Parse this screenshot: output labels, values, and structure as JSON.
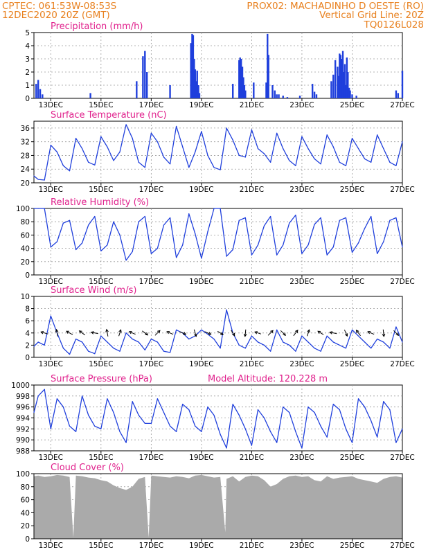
{
  "header": {
    "line1_left": "CPTEC:  061:53W-08:53S",
    "line1_right": "PROX02: MACHADINHO D OESTE (RO)",
    "line2_left": "12DEC2020 20Z (GMT)",
    "line2_right": "Vertical Grid Line: 20Z",
    "line3_right": "TQ0126L028"
  },
  "colors": {
    "header": "#e8801e",
    "panel_title": "#e0208c",
    "line": "#1f3fdc",
    "cloud": "#aaaaaa",
    "grid": "#9a9a9a",
    "axis": "#000000",
    "arrow": "#000000"
  },
  "x_axis": {
    "ticks": [
      {
        "day": 13,
        "label": "13DEC"
      },
      {
        "day": 15,
        "label": "15DEC"
      },
      {
        "day": 17,
        "label": "17DEC"
      },
      {
        "day": 19,
        "label": "19DEC"
      },
      {
        "day": 21,
        "label": "21DEC"
      },
      {
        "day": 23,
        "label": "23DEC"
      },
      {
        "day": 25,
        "label": "25DEC"
      },
      {
        "day": 27,
        "label": "27DEC"
      }
    ],
    "range_days": [
      12.33,
      27.0
    ],
    "vertical_grid_hour": "20Z"
  },
  "chart_data": [
    {
      "id": "precip",
      "type": "bar",
      "title": "Precipitation (mm/h)",
      "ylim": [
        0,
        5
      ],
      "yticks": [
        0,
        1,
        2,
        3,
        4,
        5
      ],
      "grid": true,
      "x": [
        12.42,
        12.5,
        12.58,
        12.67,
        14.58,
        16.42,
        16.67,
        16.75,
        16.83,
        17.75,
        18.58,
        18.63,
        18.67,
        18.71,
        18.75,
        18.79,
        18.83,
        18.88,
        18.92,
        20.25,
        20.5,
        20.54,
        20.58,
        20.63,
        20.67,
        20.71,
        20.75,
        21.08,
        21.58,
        21.63,
        21.67,
        21.83,
        21.92,
        22.0,
        22.08,
        22.25,
        22.42,
        22.92,
        23.42,
        23.5,
        23.58,
        24.17,
        24.25,
        24.33,
        24.42,
        24.46,
        24.5,
        24.54,
        24.58,
        24.63,
        24.67,
        24.71,
        24.75,
        24.79,
        24.83,
        24.88,
        24.92,
        25.0,
        25.17,
        26.75,
        26.83,
        27.0
      ],
      "values": [
        1.1,
        1.4,
        0.7,
        0.3,
        0.4,
        1.3,
        3.2,
        3.6,
        2.0,
        1.0,
        4.2,
        4.9,
        4.8,
        3.0,
        2.2,
        1.3,
        2.1,
        1.0,
        0.4,
        1.1,
        2.9,
        3.1,
        3.0,
        2.4,
        1.6,
        1.0,
        0.6,
        1.2,
        1.2,
        4.9,
        3.3,
        1.0,
        0.6,
        0.3,
        0.3,
        0.2,
        0.1,
        0.2,
        1.1,
        0.5,
        0.3,
        1.3,
        1.8,
        2.9,
        2.4,
        1.7,
        3.4,
        3.3,
        3.0,
        3.6,
        2.0,
        2.6,
        1.0,
        3.1,
        2.0,
        0.8,
        0.6,
        0.3,
        0.2,
        0.6,
        0.4,
        2.1
      ]
    },
    {
      "id": "temp",
      "type": "line",
      "title": "Surface Temperature (nC)",
      "ylim": [
        20,
        38
      ],
      "yticks": [
        20,
        24,
        28,
        32,
        36
      ],
      "grid": true,
      "x": [
        12.33,
        12.5,
        12.75,
        13.0,
        13.25,
        13.5,
        13.75,
        14.0,
        14.25,
        14.5,
        14.75,
        15.0,
        15.25,
        15.5,
        15.75,
        16.0,
        16.25,
        16.5,
        16.75,
        17.0,
        17.25,
        17.5,
        17.75,
        18.0,
        18.25,
        18.5,
        18.75,
        19.0,
        19.25,
        19.5,
        19.75,
        20.0,
        20.25,
        20.5,
        20.75,
        21.0,
        21.25,
        21.5,
        21.75,
        22.0,
        22.25,
        22.5,
        22.75,
        23.0,
        23.25,
        23.5,
        23.75,
        24.0,
        24.25,
        24.5,
        24.75,
        25.0,
        25.25,
        25.5,
        25.75,
        26.0,
        26.25,
        26.5,
        26.75,
        27.0
      ],
      "values": [
        22.0,
        21.0,
        20.8,
        31.0,
        29.0,
        25.0,
        23.5,
        33.0,
        30.0,
        26.0,
        25.2,
        33.5,
        30.5,
        26.5,
        29.0,
        37.0,
        33.0,
        26.0,
        24.5,
        34.5,
        32.0,
        27.5,
        25.5,
        36.5,
        30.5,
        24.5,
        29.0,
        35.0,
        28.0,
        24.5,
        23.8,
        36.0,
        32.5,
        28.0,
        27.5,
        35.5,
        30.0,
        28.5,
        26.0,
        34.5,
        30.0,
        26.5,
        25.0,
        33.5,
        30.0,
        27.0,
        25.5,
        34.0,
        30.5,
        26.0,
        25.0,
        33.0,
        30.0,
        27.0,
        26.0,
        34.0,
        30.0,
        26.0,
        25.0,
        32.0
      ]
    },
    {
      "id": "rh",
      "type": "line",
      "title": "Relative Humidity (%)",
      "ylim": [
        0,
        100
      ],
      "yticks": [
        0,
        20,
        40,
        60,
        80,
        100
      ],
      "grid": true,
      "x": [
        12.33,
        12.5,
        12.75,
        13.0,
        13.25,
        13.5,
        13.75,
        14.0,
        14.25,
        14.5,
        14.75,
        15.0,
        15.25,
        15.5,
        15.75,
        16.0,
        16.25,
        16.5,
        16.75,
        17.0,
        17.25,
        17.5,
        17.75,
        18.0,
        18.25,
        18.5,
        18.75,
        19.0,
        19.25,
        19.5,
        19.75,
        20.0,
        20.25,
        20.5,
        20.75,
        21.0,
        21.25,
        21.5,
        21.75,
        22.0,
        22.25,
        22.5,
        22.75,
        23.0,
        23.25,
        23.5,
        23.75,
        24.0,
        24.25,
        24.5,
        24.75,
        25.0,
        25.25,
        25.5,
        25.75,
        26.0,
        26.25,
        26.5,
        26.75,
        27.0
      ],
      "values": [
        100,
        100,
        100,
        42,
        50,
        78,
        82,
        38,
        48,
        75,
        88,
        36,
        45,
        80,
        60,
        22,
        35,
        80,
        88,
        32,
        40,
        75,
        86,
        26,
        45,
        92,
        62,
        25,
        65,
        100,
        100,
        28,
        38,
        82,
        86,
        30,
        45,
        74,
        88,
        30,
        45,
        78,
        90,
        32,
        45,
        76,
        86,
        30,
        42,
        82,
        86,
        34,
        48,
        70,
        88,
        32,
        50,
        82,
        86,
        42
      ]
    },
    {
      "id": "wind",
      "type": "line",
      "title": "Surface Wind (m/s)",
      "ylim": [
        0,
        10
      ],
      "yticks": [
        0,
        2,
        4,
        6,
        8,
        10
      ],
      "grid": true,
      "x": [
        12.33,
        12.5,
        12.75,
        13.0,
        13.25,
        13.5,
        13.75,
        14.0,
        14.25,
        14.5,
        14.75,
        15.0,
        15.25,
        15.5,
        15.75,
        16.0,
        16.25,
        16.5,
        16.75,
        17.0,
        17.25,
        17.5,
        17.75,
        18.0,
        18.25,
        18.5,
        18.75,
        19.0,
        19.25,
        19.5,
        19.75,
        20.0,
        20.25,
        20.5,
        20.75,
        21.0,
        21.25,
        21.5,
        21.75,
        22.0,
        22.25,
        22.5,
        22.75,
        23.0,
        23.25,
        23.5,
        23.75,
        24.0,
        24.25,
        24.5,
        24.75,
        25.0,
        25.25,
        25.5,
        25.75,
        26.0,
        26.25,
        26.5,
        26.75,
        27.0
      ],
      "values": [
        1.8,
        2.5,
        2.0,
        6.8,
        4.0,
        1.5,
        0.5,
        3.0,
        2.5,
        1.0,
        0.6,
        3.5,
        2.5,
        1.5,
        1.0,
        4.0,
        3.0,
        2.5,
        1.2,
        3.0,
        2.5,
        1.0,
        0.8,
        4.5,
        4.0,
        3.0,
        3.5,
        4.5,
        3.8,
        3.0,
        1.5,
        7.8,
        4.0,
        2.0,
        1.5,
        3.5,
        2.5,
        2.0,
        1.0,
        4.5,
        2.5,
        2.0,
        1.0,
        3.5,
        2.5,
        1.5,
        1.0,
        3.5,
        2.5,
        2.0,
        1.5,
        4.5,
        3.5,
        2.5,
        1.5,
        3.0,
        2.5,
        1.5,
        5.0,
        2.5
      ],
      "vectors": [
        {
          "day": 12.75,
          "u": -1.0,
          "v": 0.3
        },
        {
          "day": 13.25,
          "u": -0.2,
          "v": 1.0
        },
        {
          "day": 13.75,
          "u": -0.9,
          "v": 0.5
        },
        {
          "day": 14.25,
          "u": -0.8,
          "v": 0.6
        },
        {
          "day": 14.75,
          "u": -1.0,
          "v": 0.2
        },
        {
          "day": 15.25,
          "u": -0.2,
          "v": 1.0
        },
        {
          "day": 15.75,
          "u": 0.3,
          "v": 0.9
        },
        {
          "day": 16.25,
          "u": -0.9,
          "v": 0.4
        },
        {
          "day": 16.75,
          "u": 0.8,
          "v": -0.6
        },
        {
          "day": 17.25,
          "u": 0.7,
          "v": 0.7
        },
        {
          "day": 17.75,
          "u": -0.9,
          "v": 0.4
        },
        {
          "day": 18.25,
          "u": 0.9,
          "v": -0.4
        },
        {
          "day": 18.75,
          "u": 0.3,
          "v": -1.0
        },
        {
          "day": 19.25,
          "u": 0.9,
          "v": -0.4
        },
        {
          "day": 19.75,
          "u": 0.8,
          "v": -0.5
        },
        {
          "day": 20.25,
          "u": 0.5,
          "v": -0.8
        },
        {
          "day": 20.75,
          "u": -0.1,
          "v": -1.0
        },
        {
          "day": 21.25,
          "u": -0.9,
          "v": 0.3
        },
        {
          "day": 21.75,
          "u": 0.7,
          "v": 0.7
        },
        {
          "day": 22.25,
          "u": 0.7,
          "v": -0.7
        },
        {
          "day": 22.75,
          "u": 0.6,
          "v": 0.8
        },
        {
          "day": 23.25,
          "u": 0.3,
          "v": 0.9
        },
        {
          "day": 23.75,
          "u": -0.8,
          "v": 0.5
        },
        {
          "day": 24.25,
          "u": -1.0,
          "v": 0.2
        },
        {
          "day": 24.75,
          "u": 0.4,
          "v": -0.9
        },
        {
          "day": 25.25,
          "u": -0.6,
          "v": 0.8
        },
        {
          "day": 25.75,
          "u": -0.9,
          "v": 0.4
        },
        {
          "day": 26.25,
          "u": 0.1,
          "v": -1.0
        },
        {
          "day": 26.75,
          "u": 0.7,
          "v": -0.7
        }
      ]
    },
    {
      "id": "pressure",
      "type": "line",
      "title": "Surface Pressure (hPa)",
      "subtitle": "Model Altitude: 120.228 m",
      "ylim": [
        988,
        1000
      ],
      "yticks": [
        988,
        990,
        992,
        994,
        996,
        998,
        1000
      ],
      "grid": true,
      "x": [
        12.33,
        12.5,
        12.75,
        13.0,
        13.25,
        13.5,
        13.75,
        14.0,
        14.25,
        14.5,
        14.75,
        15.0,
        15.25,
        15.5,
        15.75,
        16.0,
        16.25,
        16.5,
        16.75,
        17.0,
        17.25,
        17.5,
        17.75,
        18.0,
        18.25,
        18.5,
        18.75,
        19.0,
        19.25,
        19.5,
        19.75,
        20.0,
        20.25,
        20.5,
        20.75,
        21.0,
        21.25,
        21.5,
        21.75,
        22.0,
        22.25,
        22.5,
        22.75,
        23.0,
        23.25,
        23.5,
        23.75,
        24.0,
        24.25,
        24.5,
        24.75,
        25.0,
        25.25,
        25.5,
        25.75,
        26.0,
        26.25,
        26.5,
        26.75,
        27.0
      ],
      "values": [
        995.0,
        998.0,
        999.2,
        992.0,
        997.5,
        996.0,
        992.5,
        991.5,
        998.0,
        994.5,
        992.5,
        992.0,
        997.5,
        995.0,
        991.5,
        989.5,
        997.0,
        994.5,
        993.0,
        993.0,
        997.5,
        995.0,
        992.5,
        991.5,
        996.5,
        995.5,
        992.5,
        991.5,
        996.0,
        994.5,
        991.0,
        988.5,
        996.5,
        994.5,
        992.0,
        989.0,
        995.5,
        994.0,
        991.5,
        989.5,
        996.0,
        995.0,
        991.5,
        988.5,
        996.0,
        995.0,
        992.5,
        990.5,
        996.5,
        995.5,
        992.0,
        989.5,
        997.5,
        996.0,
        993.5,
        990.5,
        997.0,
        995.5,
        989.5,
        992.0
      ]
    },
    {
      "id": "cloud",
      "type": "area",
      "title": "Cloud Cover (%)",
      "ylim": [
        0,
        100
      ],
      "yticks": [
        0,
        20,
        40,
        60,
        80,
        100
      ],
      "grid": true,
      "x": [
        12.33,
        12.5,
        12.75,
        13.0,
        13.25,
        13.5,
        13.75,
        13.9,
        14.0,
        14.25,
        14.5,
        14.75,
        15.0,
        15.25,
        15.5,
        15.75,
        16.0,
        16.25,
        16.5,
        16.75,
        16.9,
        17.0,
        17.25,
        17.5,
        17.75,
        18.0,
        18.25,
        18.5,
        18.75,
        19.0,
        19.25,
        19.5,
        19.75,
        19.95,
        20.0,
        20.25,
        20.5,
        20.75,
        21.0,
        21.25,
        21.5,
        21.75,
        22.0,
        22.25,
        22.5,
        22.75,
        23.0,
        23.25,
        23.5,
        23.75,
        24.0,
        24.25,
        24.5,
        24.75,
        25.0,
        25.25,
        25.5,
        25.75,
        26.0,
        26.25,
        26.5,
        26.75,
        27.0
      ],
      "values": [
        96,
        97,
        95,
        96,
        98,
        97,
        95,
        2,
        97,
        96,
        94,
        93,
        90,
        88,
        82,
        78,
        75,
        80,
        92,
        95,
        2,
        97,
        96,
        95,
        94,
        96,
        95,
        93,
        97,
        98,
        96,
        94,
        95,
        10,
        92,
        96,
        88,
        95,
        97,
        96,
        90,
        80,
        84,
        92,
        96,
        97,
        95,
        96,
        90,
        88,
        96,
        92,
        94,
        95,
        96,
        92,
        90,
        88,
        86,
        92,
        95,
        96,
        94
      ]
    }
  ]
}
